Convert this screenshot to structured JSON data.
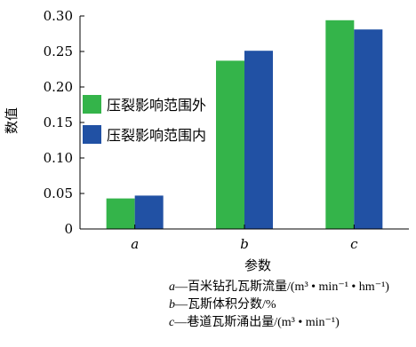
{
  "chart_data": {
    "type": "bar",
    "categories": [
      "a",
      "b",
      "c"
    ],
    "series": [
      {
        "name": "压裂影响范围外",
        "values": [
          0.043,
          0.237,
          0.294
        ],
        "color": "#34b44a"
      },
      {
        "name": "压裂影响范围内",
        "values": [
          0.047,
          0.251,
          0.281
        ],
        "color": "#2151a4"
      }
    ],
    "xlabel": "参数",
    "ylabel": "数值",
    "ylim": [
      0,
      0.3
    ],
    "yticks": [
      "0",
      "0.05",
      "0.10",
      "0.15",
      "0.20",
      "0.25",
      "0.30"
    ],
    "legend_position": "center-left",
    "grid": false
  },
  "notes": [
    {
      "key": "a",
      "text": "—百米钻孔瓦斯流量/(m³ • min⁻¹ • hm⁻¹)"
    },
    {
      "key": "b",
      "text": "—瓦斯体积分数/%"
    },
    {
      "key": "c",
      "text": "—巷道瓦斯涌出量/(m³ • min⁻¹)"
    }
  ]
}
